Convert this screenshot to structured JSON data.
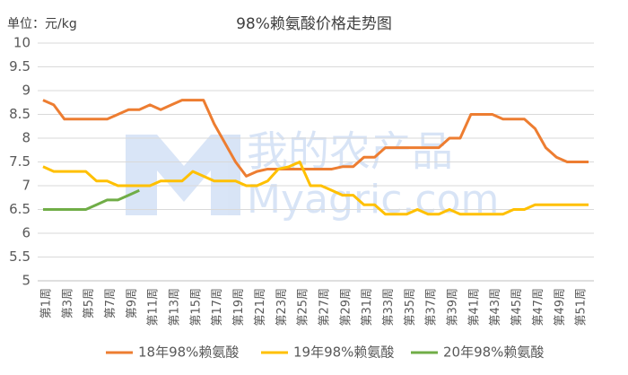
{
  "chart_data": {
    "type": "line",
    "title": "98%赖氨酸价格走势图",
    "unit_label": "单位：元/kg",
    "watermark": [
      "我的农产品",
      "Myagric.com"
    ],
    "categories": [
      "第1周",
      null,
      "第3周",
      null,
      "第5周",
      null,
      "第7周",
      null,
      "第9周",
      null,
      "第11周",
      null,
      "第13周",
      null,
      "第15周",
      null,
      "第17周",
      null,
      "第19周",
      null,
      "第21周",
      null,
      "第23周",
      null,
      "第25周",
      null,
      "第27周",
      null,
      "第29周",
      null,
      "第31周",
      null,
      "第33周",
      null,
      "第35周",
      null,
      "第37周",
      null,
      "第39周",
      null,
      "第41周",
      null,
      "第43周",
      null,
      "第45周",
      null,
      "第47周",
      null,
      "第49周",
      null,
      "第51周",
      null
    ],
    "series": [
      {
        "name": "18年98%赖氨酸",
        "color": "#ED7D31",
        "values": [
          8.8,
          8.7,
          8.4,
          8.4,
          8.4,
          8.4,
          8.4,
          8.5,
          8.6,
          8.6,
          8.7,
          8.6,
          8.7,
          8.8,
          8.8,
          8.8,
          8.3,
          7.9,
          7.5,
          7.2,
          7.3,
          7.35,
          7.35,
          7.35,
          7.35,
          7.35,
          7.35,
          7.35,
          7.4,
          7.4,
          7.6,
          7.6,
          7.8,
          7.8,
          7.8,
          7.8,
          7.8,
          7.8,
          8.0,
          8.0,
          8.5,
          8.5,
          8.5,
          8.4,
          8.4,
          8.4,
          8.2,
          7.8,
          7.6,
          7.5,
          7.5,
          7.5
        ]
      },
      {
        "name": "19年98%赖氨酸",
        "color": "#FFC000",
        "values": [
          7.4,
          7.3,
          7.3,
          7.3,
          7.3,
          7.1,
          7.1,
          7.0,
          7.0,
          7.0,
          7.0,
          7.1,
          7.1,
          7.1,
          7.3,
          7.2,
          7.1,
          7.1,
          7.1,
          7.0,
          7.0,
          7.1,
          7.35,
          7.4,
          7.5,
          7.0,
          7.0,
          6.9,
          6.8,
          6.8,
          6.6,
          6.6,
          6.4,
          6.4,
          6.4,
          6.5,
          6.4,
          6.4,
          6.5,
          6.4,
          6.4,
          6.4,
          6.4,
          6.4,
          6.5,
          6.5,
          6.6,
          6.6,
          6.6,
          6.6,
          6.6,
          6.6
        ]
      },
      {
        "name": "20年98%赖氨酸",
        "color": "#70AD47",
        "values": [
          6.5,
          6.5,
          6.5,
          6.5,
          6.5,
          6.6,
          6.7,
          6.7,
          6.8,
          6.9,
          null,
          null,
          null,
          null,
          null,
          null,
          null,
          null,
          null,
          null,
          null,
          null,
          null,
          null,
          null,
          null,
          null,
          null,
          null,
          null,
          null,
          null,
          null,
          null,
          null,
          null,
          null,
          null,
          null,
          null,
          null,
          null,
          null,
          null,
          null,
          null,
          null,
          null,
          null,
          null,
          null,
          null
        ]
      }
    ],
    "ylim": [
      5,
      10
    ],
    "yticks": [
      5,
      5.5,
      6,
      6.5,
      7,
      7.5,
      8,
      8.5,
      9,
      9.5,
      10
    ],
    "grid": true
  }
}
